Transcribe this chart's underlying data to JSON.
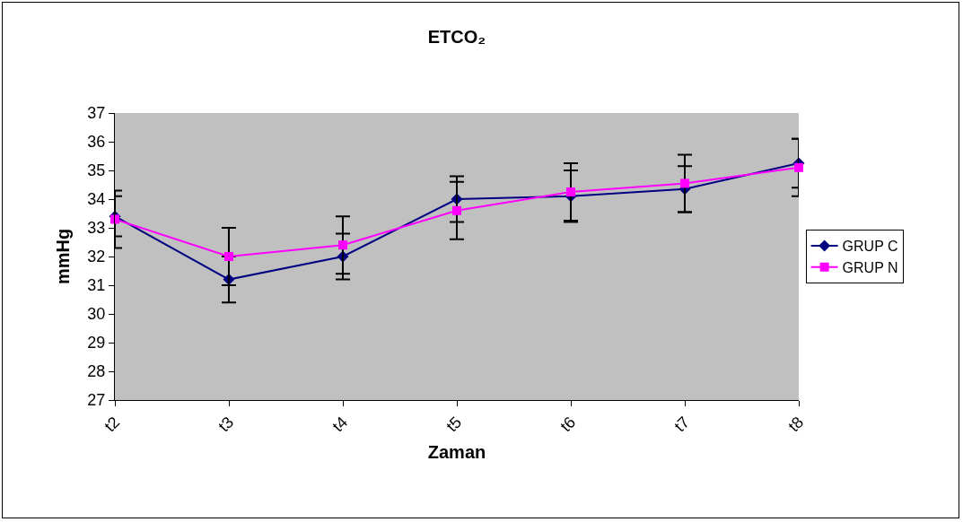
{
  "chart_data": {
    "type": "line",
    "title": "ETCO₂",
    "xlabel": "Zaman",
    "ylabel": "mmHg",
    "categories": [
      "t2",
      "t3",
      "t4",
      "t5",
      "t6",
      "t7",
      "t8"
    ],
    "series": [
      {
        "name": "GRUP C",
        "color": "#000080",
        "marker": "diamond",
        "values": [
          33.4,
          31.2,
          32.0,
          34.0,
          34.1,
          34.35,
          35.25
        ],
        "errors": [
          0.7,
          0.8,
          0.8,
          0.8,
          0.9,
          0.8,
          0.85
        ]
      },
      {
        "name": "GRUP N",
        "color": "#ff00ff",
        "marker": "square",
        "values": [
          33.3,
          32.0,
          32.4,
          33.6,
          34.25,
          34.55,
          35.1
        ],
        "errors": [
          1.0,
          1.0,
          1.0,
          1.0,
          1.0,
          1.0,
          1.0
        ]
      }
    ],
    "ylim": [
      27,
      37
    ],
    "yticks": [
      27,
      28,
      29,
      30,
      31,
      32,
      33,
      34,
      35,
      36,
      37
    ],
    "grid": false,
    "legend": "right",
    "line_style": "solid"
  }
}
